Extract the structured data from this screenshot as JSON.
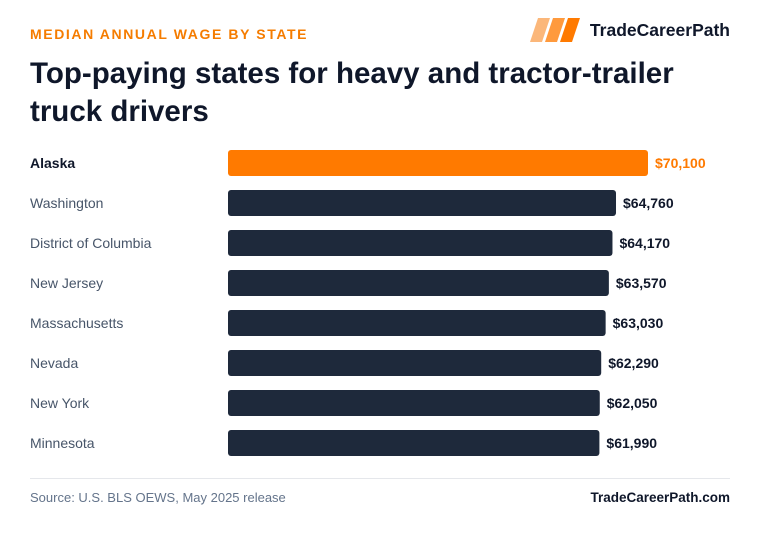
{
  "header": {
    "eyebrow": "MEDIAN ANNUAL WAGE BY STATE",
    "brand": "TradeCareerPath",
    "brand_icon": "slanted-stripes-logo-icon",
    "title": "Top-paying states for heavy and tractor-trailer truck drivers"
  },
  "footer": {
    "source": "Source: U.S. BLS OEWS, May 2025 release",
    "site": "TradeCareerPath.com"
  },
  "colors": {
    "accent": "#ff7a00",
    "accent_text": "#f57c00",
    "bar": "#1e293b",
    "label": "#475569",
    "highlight_label": "#0f172a"
  },
  "chart_data": {
    "type": "bar",
    "orientation": "horizontal",
    "title": "Top-paying states for heavy and tractor-trailer truck drivers",
    "categories": [
      "Alaska",
      "Washington",
      "District of Columbia",
      "New Jersey",
      "Massachusetts",
      "Nevada",
      "New York",
      "Minnesota"
    ],
    "values": [
      70100,
      64760,
      64170,
      63570,
      63030,
      62290,
      62050,
      61990
    ],
    "value_labels": [
      "$70,100",
      "$64,760",
      "$64,170",
      "$63,570",
      "$63,030",
      "$62,290",
      "$62,050",
      "$61,990"
    ],
    "highlight": "Alaska",
    "xlim": [
      0,
      70100
    ],
    "grid": false,
    "legend": "none"
  }
}
